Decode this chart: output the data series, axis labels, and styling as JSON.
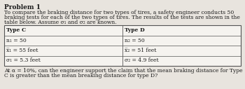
{
  "title": "Problem 1",
  "intro_line1": "To compare the braking distance for two types of tires, a safety engineer conducts 50",
  "intro_line2": "braking tests for each of the two types of tires. The results of the tests are shown in the",
  "intro_line3": "table below. Assume σ₁ and σ₂ are known.",
  "col1_header": "Type C",
  "col1_row1": "n₁ = 50",
  "col1_row2": "x̅₁ = 55 feet",
  "col1_row3": "σ₁ = 5.3 feet",
  "col2_header": "Type D",
  "col2_row1": "n₂ = 50",
  "col2_row2": "x̅₂ = 51 feet",
  "col2_row3": "σ₂ = 4.9 feet",
  "footer_line1": "At α = 10%, can the engineer support the claim that the mean braking distance for Type",
  "footer_line2": "C is greater than the mean breaking distance for type D?",
  "bg_color": "#e8e4de",
  "table_bg": "#f5f3ef",
  "border_color": "#555555",
  "text_color": "#1a1a1a",
  "title_fontsize": 6.5,
  "body_fontsize": 5.5,
  "table_fontsize": 5.5
}
